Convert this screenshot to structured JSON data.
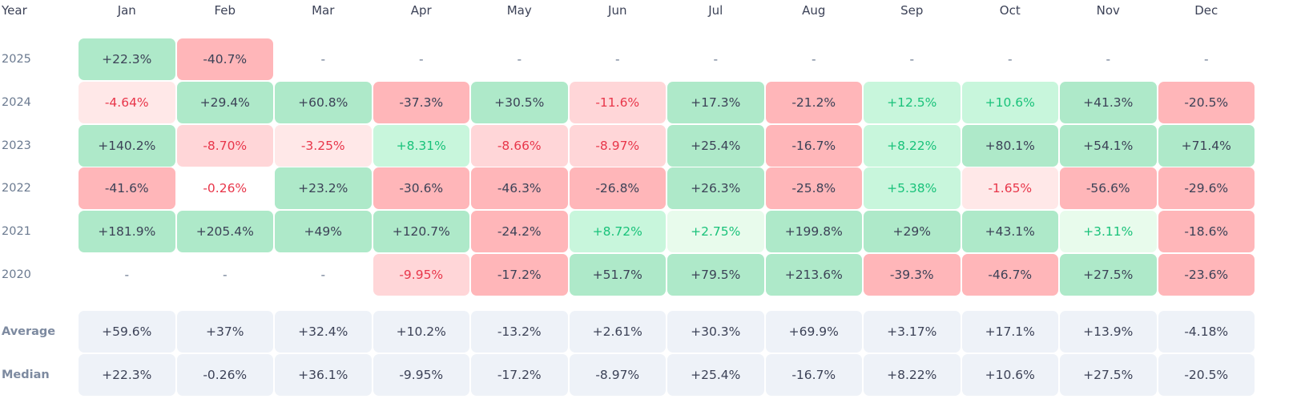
{
  "chart_data": {
    "type": "heatmap",
    "title": "",
    "corner_label": "Year",
    "months": [
      "Jan",
      "Feb",
      "Mar",
      "Apr",
      "May",
      "Jun",
      "Jul",
      "Aug",
      "Sep",
      "Oct",
      "Nov",
      "Dec"
    ],
    "unit": "%",
    "rows": [
      {
        "year": "2025",
        "values": [
          "+22.3%",
          "-40.7%",
          "-",
          "-",
          "-",
          "-",
          "-",
          "-",
          "-",
          "-",
          "-",
          "-"
        ],
        "tints": [
          "sg",
          "sr",
          "empty",
          "empty",
          "empty",
          "empty",
          "empty",
          "empty",
          "empty",
          "empty",
          "empty",
          "empty"
        ]
      },
      {
        "year": "2024",
        "values": [
          "-4.64%",
          "+29.4%",
          "+60.8%",
          "-37.3%",
          "+30.5%",
          "-11.6%",
          "+17.3%",
          "-21.2%",
          "+12.5%",
          "+10.6%",
          "+41.3%",
          "-20.5%"
        ],
        "tints": [
          "vr",
          "sg",
          "sg",
          "sr",
          "sg",
          "lr",
          "sg",
          "sr",
          "lg",
          "lg",
          "sg",
          "sr"
        ]
      },
      {
        "year": "2023",
        "values": [
          "+140.2%",
          "-8.70%",
          "-3.25%",
          "+8.31%",
          "-8.66%",
          "-8.97%",
          "+25.4%",
          "-16.7%",
          "+8.22%",
          "+80.1%",
          "+54.1%",
          "+71.4%"
        ],
        "tints": [
          "sg",
          "lr",
          "vr",
          "lg",
          "lr",
          "lr",
          "sg",
          "sr",
          "lg",
          "sg",
          "sg",
          "sg"
        ]
      },
      {
        "year": "2022",
        "values": [
          "-41.6%",
          "-0.26%",
          "+23.2%",
          "-30.6%",
          "-46.3%",
          "-26.8%",
          "+26.3%",
          "-25.8%",
          "+5.38%",
          "-1.65%",
          "-56.6%",
          "-29.6%"
        ],
        "tints": [
          "sr",
          "nr",
          "sg",
          "sr",
          "sr",
          "sr",
          "sg",
          "sr",
          "lg",
          "vr",
          "sr",
          "sr"
        ]
      },
      {
        "year": "2021",
        "values": [
          "+181.9%",
          "+205.4%",
          "+49%",
          "+120.7%",
          "-24.2%",
          "+8.72%",
          "+2.75%",
          "+199.8%",
          "+29%",
          "+43.1%",
          "+3.11%",
          "-18.6%"
        ],
        "tints": [
          "sg",
          "sg",
          "sg",
          "sg",
          "sr",
          "lg",
          "vg",
          "sg",
          "sg",
          "sg",
          "vg",
          "sr"
        ]
      },
      {
        "year": "2020",
        "values": [
          "-",
          "-",
          "-",
          "-9.95%",
          "-17.2%",
          "+51.7%",
          "+79.5%",
          "+213.6%",
          "-39.3%",
          "-46.7%",
          "+27.5%",
          "-23.6%"
        ],
        "tints": [
          "empty",
          "empty",
          "empty",
          "lr",
          "sr",
          "sg",
          "sg",
          "sg",
          "sr",
          "sr",
          "sg",
          "sr"
        ]
      }
    ],
    "summary": [
      {
        "label": "Average",
        "values": [
          "+59.6%",
          "+37%",
          "+32.4%",
          "+10.2%",
          "-13.2%",
          "+2.61%",
          "+30.3%",
          "+69.9%",
          "+3.17%",
          "+17.1%",
          "+13.9%",
          "-4.18%"
        ]
      },
      {
        "label": "Median",
        "values": [
          "+22.3%",
          "-0.26%",
          "+36.1%",
          "-9.95%",
          "-17.2%",
          "-8.97%",
          "+25.4%",
          "-16.7%",
          "+8.22%",
          "+10.6%",
          "+27.5%",
          "-20.5%"
        ]
      }
    ],
    "colors": {
      "strong_positive": "#aee9c9",
      "mild_positive": "#c8f6dc",
      "slight_positive": "#e8fbec",
      "strong_negative": "#ffb6b9",
      "mild_negative": "#ffd6d8",
      "slight_negative": "#ffe8e8",
      "summary": "#eef2f8",
      "positive_text": "#19c27a",
      "negative_text": "#e8364a",
      "neutral_text": "#3c4257"
    }
  }
}
